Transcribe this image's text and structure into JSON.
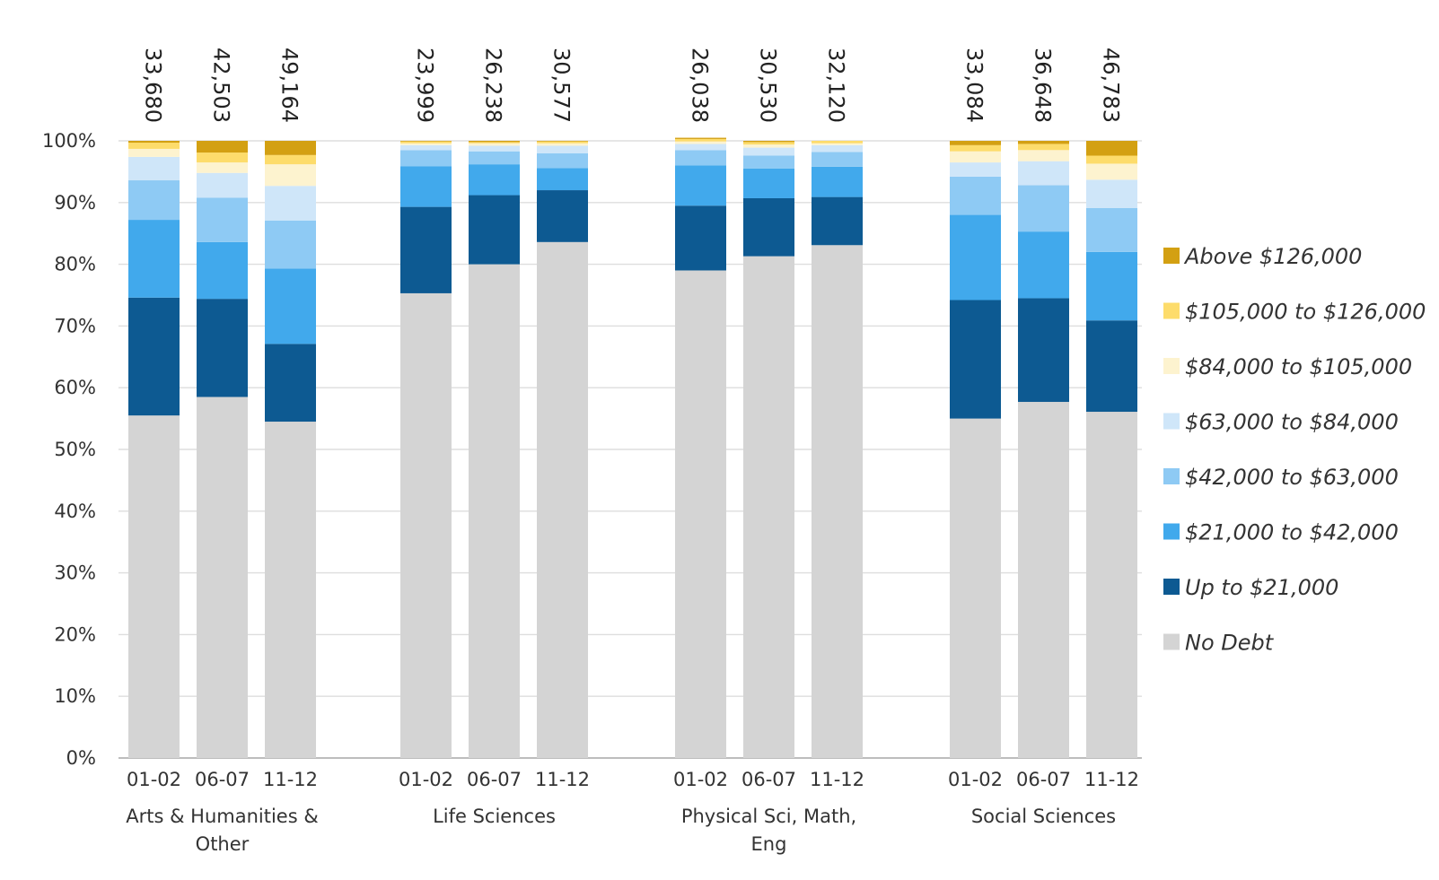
{
  "chart_data": {
    "type": "bar",
    "stacked": true,
    "percent": true,
    "title": "",
    "xlabel": "",
    "ylabel": "",
    "ylim": [
      0,
      100
    ],
    "yticks": [
      "0%",
      "10%",
      "20%",
      "30%",
      "40%",
      "50%",
      "60%",
      "70%",
      "80%",
      "90%",
      "100%"
    ],
    "grid": true,
    "legend_position": "right",
    "groups": [
      {
        "name": "Arts & Humanities & Other",
        "name_lines": [
          "Arts & Humanities &",
          "Other"
        ],
        "years": [
          "01-02",
          "06-07",
          "11-12"
        ],
        "totals": [
          "33,680",
          "42,503",
          "49,164"
        ]
      },
      {
        "name": "Life Sciences",
        "name_lines": [
          "Life Sciences"
        ],
        "years": [
          "01-02",
          "06-07",
          "11-12"
        ],
        "totals": [
          "23,999",
          "26,238",
          "30,577"
        ]
      },
      {
        "name": "Physical Sci, Math, Eng",
        "name_lines": [
          "Physical Sci, Math,",
          "Eng"
        ],
        "years": [
          "01-02",
          "06-07",
          "11-12"
        ],
        "totals": [
          "26,038",
          "30,530",
          "32,120"
        ]
      },
      {
        "name": "Social Sciences",
        "name_lines": [
          "Social Sciences"
        ],
        "years": [
          "01-02",
          "06-07",
          "11-12"
        ],
        "totals": [
          "33,084",
          "36,648",
          "46,783"
        ]
      }
    ],
    "categories": [
      "01-02",
      "06-07",
      "11-12",
      "01-02",
      "06-07",
      "11-12",
      "01-02",
      "06-07",
      "11-12",
      "01-02",
      "06-07",
      "11-12"
    ],
    "series": [
      {
        "name": "No Debt",
        "color": "#d4d4d4",
        "values": [
          55.5,
          58.5,
          54.5,
          75.3,
          80.0,
          83.6,
          79.0,
          81.3,
          83.1,
          55.0,
          57.7,
          56.1
        ]
      },
      {
        "name": "Up to $21,000",
        "color": "#0d5a92",
        "values": [
          19.1,
          15.9,
          12.6,
          14.0,
          11.2,
          8.4,
          10.5,
          9.4,
          7.8,
          19.2,
          16.8,
          14.8
        ]
      },
      {
        "name": "$21,000 to $42,000",
        "color": "#41a9ec",
        "values": [
          12.6,
          9.2,
          12.2,
          6.6,
          5.0,
          3.6,
          6.5,
          4.8,
          4.9,
          13.8,
          10.8,
          11.1
        ]
      },
      {
        "name": "$42,000 to $63,000",
        "color": "#8ecaf4",
        "values": [
          6.4,
          7.2,
          7.8,
          2.6,
          2.1,
          2.4,
          2.5,
          2.1,
          2.4,
          6.2,
          7.5,
          7.1
        ]
      },
      {
        "name": "$63,000 to $84,000",
        "color": "#cfe6f9",
        "values": [
          3.8,
          4.0,
          5.6,
          0.8,
          0.9,
          1.2,
          1.0,
          1.3,
          1.1,
          2.3,
          3.9,
          4.6
        ]
      },
      {
        "name": "$84,000 to $105,000",
        "color": "#fdf3cf",
        "values": [
          1.3,
          1.7,
          3.5,
          0.3,
          0.4,
          0.4,
          0.4,
          0.5,
          0.3,
          1.8,
          1.8,
          2.6
        ]
      },
      {
        "name": "$105,000 to $126,000",
        "color": "#fddc6b",
        "values": [
          1.0,
          1.6,
          1.5,
          0.3,
          0.2,
          0.3,
          0.4,
          0.4,
          0.4,
          1.0,
          1.0,
          1.3
        ]
      },
      {
        "name": "Above $126,000",
        "color": "#d3a012",
        "values": [
          0.3,
          1.9,
          2.3,
          0.1,
          0.2,
          0.1,
          0.2,
          0.2,
          0.0,
          0.7,
          0.5,
          2.4
        ]
      }
    ],
    "legend_order": [
      "Above $126,000",
      "$105,000 to $126,000",
      "$84,000 to $105,000",
      "$63,000 to $84,000",
      "$42,000 to $63,000",
      "$21,000 to $42,000",
      "Up to $21,000",
      "No Debt"
    ]
  }
}
